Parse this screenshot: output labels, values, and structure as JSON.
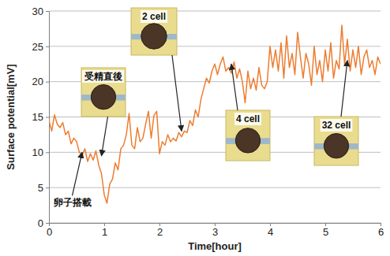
{
  "chart_data": {
    "type": "line",
    "x_label": "Time[hour]",
    "y_label": "Surface potential[mV]",
    "color": "#ed7d31",
    "grid": true,
    "xlim": [
      0,
      6
    ],
    "xticks": [
      0,
      1,
      2,
      3,
      4,
      5,
      6
    ],
    "ylim": [
      0,
      30
    ],
    "yticks": [
      0,
      5,
      10,
      15,
      20,
      25,
      30
    ],
    "x": [
      0,
      0.05,
      0.1,
      0.15,
      0.2,
      0.25,
      0.3,
      0.35,
      0.4,
      0.45,
      0.5,
      0.55,
      0.6,
      0.65,
      0.7,
      0.75,
      0.8,
      0.85,
      0.9,
      0.95,
      1,
      1.05,
      1.1,
      1.15,
      1.2,
      1.25,
      1.3,
      1.35,
      1.4,
      1.45,
      1.5,
      1.55,
      1.6,
      1.65,
      1.7,
      1.75,
      1.8,
      1.85,
      1.9,
      1.95,
      2,
      2.05,
      2.1,
      2.15,
      2.2,
      2.25,
      2.3,
      2.35,
      2.4,
      2.45,
      2.5,
      2.55,
      2.6,
      2.65,
      2.7,
      2.75,
      2.8,
      2.85,
      2.9,
      2.95,
      3,
      3.05,
      3.1,
      3.15,
      3.2,
      3.25,
      3.3,
      3.35,
      3.4,
      3.45,
      3.5,
      3.55,
      3.6,
      3.65,
      3.7,
      3.75,
      3.8,
      3.85,
      3.9,
      3.95,
      4,
      4.05,
      4.1,
      4.15,
      4.2,
      4.25,
      4.3,
      4.35,
      4.4,
      4.45,
      4.5,
      4.55,
      4.6,
      4.65,
      4.7,
      4.75,
      4.8,
      4.85,
      4.9,
      4.95,
      5,
      5.05,
      5.1,
      5.15,
      5.2,
      5.25,
      5.3,
      5.35,
      5.4,
      5.45,
      5.5,
      5.55,
      5.6,
      5.65,
      5.7,
      5.75,
      5.8,
      5.85,
      5.9,
      5.95,
      6
    ],
    "values": [
      14.5,
      13.0,
      15.3,
      14.0,
      13.5,
      14.2,
      12.5,
      13.0,
      11.2,
      12.0,
      11.5,
      10.0,
      9.5,
      10.5,
      8.7,
      9.8,
      8.9,
      10.2,
      8.2,
      7.0,
      4.0,
      2.8,
      5.5,
      6.2,
      8.5,
      7.5,
      10.5,
      11.0,
      12.5,
      15.5,
      11.0,
      10.5,
      13.5,
      11.5,
      12.0,
      14.0,
      15.8,
      12.0,
      15.2,
      15.8,
      9.8,
      11.5,
      11.0,
      12.5,
      11.5,
      12.0,
      11.6,
      12.8,
      12.2,
      13.0,
      12.8,
      14.5,
      13.8,
      16.0,
      15.0,
      17.5,
      19.0,
      20.5,
      19.8,
      21.5,
      22.5,
      21.0,
      22.5,
      23.5,
      21.5,
      22.0,
      21.2,
      22.8,
      20.5,
      21.8,
      20.0,
      17.0,
      21.5,
      19.0,
      20.5,
      18.8,
      22.0,
      19.5,
      19.0,
      20.0,
      25.0,
      22.0,
      24.5,
      21.5,
      25.5,
      20.5,
      26.5,
      22.0,
      24.0,
      21.0,
      27.0,
      23.5,
      20.5,
      24.0,
      22.5,
      19.5,
      25.0,
      21.0,
      23.0,
      20.0,
      24.5,
      21.5,
      25.5,
      20.5,
      23.0,
      21.8,
      28.0,
      22.5,
      26.0,
      21.5,
      24.5,
      22.0,
      25.0,
      21.0,
      23.5,
      24.5,
      22.0,
      23.0,
      21.0,
      23.5,
      22.5
    ],
    "annotations": [
      {
        "text": "卵子搭載",
        "x": 0.6,
        "y": 10
      },
      {
        "text": "受精直後",
        "x": 0.95,
        "y": 9.5
      },
      {
        "text": "2 cell",
        "x": 2.4,
        "y": 13
      },
      {
        "text": "4 cell",
        "x": 3.3,
        "y": 22.5
      },
      {
        "text": "32 cell",
        "x": 5.4,
        "y": 23
      }
    ]
  }
}
